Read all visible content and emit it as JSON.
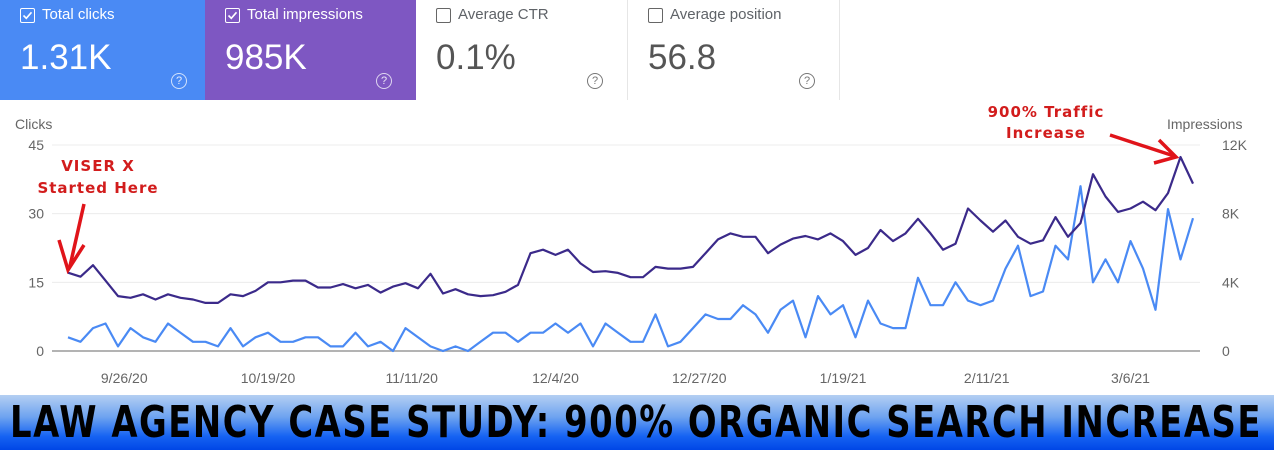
{
  "cards": [
    {
      "label": "Total clicks",
      "value": "1.31K",
      "checked": true,
      "color": "#4a8af4"
    },
    {
      "label": "Total impressions",
      "value": "985K",
      "checked": true,
      "color": "#7e57c2"
    },
    {
      "label": "Average CTR",
      "value": "0.1%",
      "checked": false
    },
    {
      "label": "Average position",
      "value": "56.8",
      "checked": false
    }
  ],
  "help_icon": "question-circle-icon",
  "annotations": {
    "start_line1": "VISER X",
    "start_line2": "Started Here",
    "peak_line1": "900% Traffic",
    "peak_line2": "Increase",
    "color": "#d21c1c"
  },
  "banner": {
    "text": "LAW AGENCY CASE STUDY: 900% ORGANIC SEARCH INCREASE"
  },
  "chart_data": {
    "type": "line",
    "ylabel": "Clicks",
    "y2label": "Impressions",
    "ylim": [
      0,
      45
    ],
    "y2lim": [
      0,
      12000
    ],
    "yticks": [
      "0",
      "15",
      "30",
      "45"
    ],
    "y2ticks": [
      "0",
      "4K",
      "8K",
      "12K"
    ],
    "xticks": [
      "9/26/20",
      "10/19/20",
      "11/11/20",
      "12/4/20",
      "12/27/20",
      "1/19/21",
      "2/11/21",
      "3/6/21"
    ],
    "grid": true,
    "x": [
      "9/17/20",
      "9/19/20",
      "9/21/20",
      "9/23/20",
      "9/25/20",
      "9/27/20",
      "9/29/20",
      "10/1/20",
      "10/3/20",
      "10/5/20",
      "10/7/20",
      "10/9/20",
      "10/11/20",
      "10/13/20",
      "10/15/20",
      "10/17/20",
      "10/19/20",
      "10/21/20",
      "10/23/20",
      "10/25/20",
      "10/27/20",
      "10/29/20",
      "10/31/20",
      "11/2/20",
      "11/4/20",
      "11/6/20",
      "11/8/20",
      "11/10/20",
      "11/12/20",
      "11/14/20",
      "11/16/20",
      "11/18/20",
      "11/20/20",
      "11/22/20",
      "11/24/20",
      "11/26/20",
      "11/28/20",
      "11/30/20",
      "12/2/20",
      "12/4/20",
      "12/6/20",
      "12/8/20",
      "12/10/20",
      "12/12/20",
      "12/14/20",
      "12/16/20",
      "12/18/20",
      "12/20/20",
      "12/22/20",
      "12/24/20",
      "12/26/20",
      "12/28/20",
      "12/30/20",
      "1/1/21",
      "1/3/21",
      "1/5/21",
      "1/7/21",
      "1/9/21",
      "1/11/21",
      "1/13/21",
      "1/15/21",
      "1/17/21",
      "1/19/21",
      "1/21/21",
      "1/23/21",
      "1/25/21",
      "1/27/21",
      "1/29/21",
      "1/31/21",
      "2/2/21",
      "2/4/21",
      "2/6/21",
      "2/8/21",
      "2/10/21",
      "2/12/21",
      "2/14/21",
      "2/16/21",
      "2/18/21",
      "2/20/21",
      "2/22/21",
      "2/24/21",
      "2/26/21",
      "2/28/21",
      "3/2/21",
      "3/4/21",
      "3/6/21",
      "3/8/21",
      "3/10/21",
      "3/12/21",
      "3/14/21",
      "3/16/21"
    ],
    "series": [
      {
        "name": "Clicks",
        "axis": "left",
        "color": "#4a8af4",
        "values": [
          3,
          2,
          5,
          6,
          1,
          5,
          3,
          2,
          6,
          4,
          2,
          2,
          1,
          5,
          1,
          3,
          4,
          2,
          2,
          3,
          3,
          1,
          1,
          4,
          1,
          2,
          0,
          5,
          3,
          1,
          0,
          1,
          0,
          2,
          4,
          4,
          2,
          4,
          4,
          6,
          4,
          6,
          1,
          6,
          4,
          2,
          2,
          8,
          1,
          2,
          5,
          8,
          7,
          7,
          10,
          8,
          4,
          9,
          11,
          3,
          12,
          8,
          10,
          3,
          11,
          6,
          5,
          5,
          16,
          10,
          10,
          15,
          11,
          10,
          11,
          18,
          23,
          12,
          13,
          23,
          20,
          36,
          15,
          20,
          15,
          24,
          18,
          9,
          31,
          20,
          29
        ]
      },
      {
        "name": "Impressions",
        "axis": "right",
        "color": "#3b2a8a",
        "values": [
          4560,
          4330,
          5000,
          4100,
          3200,
          3100,
          3300,
          3000,
          3300,
          3100,
          3000,
          2800,
          2800,
          3300,
          3200,
          3500,
          4000,
          4000,
          4100,
          4100,
          3700,
          3700,
          3900,
          3650,
          3850,
          3400,
          3750,
          3950,
          3650,
          4500,
          3350,
          3600,
          3300,
          3200,
          3250,
          3450,
          3850,
          5700,
          5900,
          5600,
          5900,
          5100,
          4600,
          4650,
          4550,
          4300,
          4300,
          4900,
          4800,
          4800,
          4900,
          5700,
          6500,
          6850,
          6650,
          6650,
          5700,
          6200,
          6550,
          6700,
          6500,
          6850,
          6400,
          5600,
          6000,
          7050,
          6400,
          6850,
          7700,
          6850,
          5900,
          6250,
          8300,
          7600,
          6950,
          7600,
          6650,
          6250,
          6450,
          7800,
          6650,
          7450,
          10300,
          9000,
          8100,
          8300,
          8700,
          8200,
          9200,
          11300,
          9750
        ]
      }
    ]
  }
}
